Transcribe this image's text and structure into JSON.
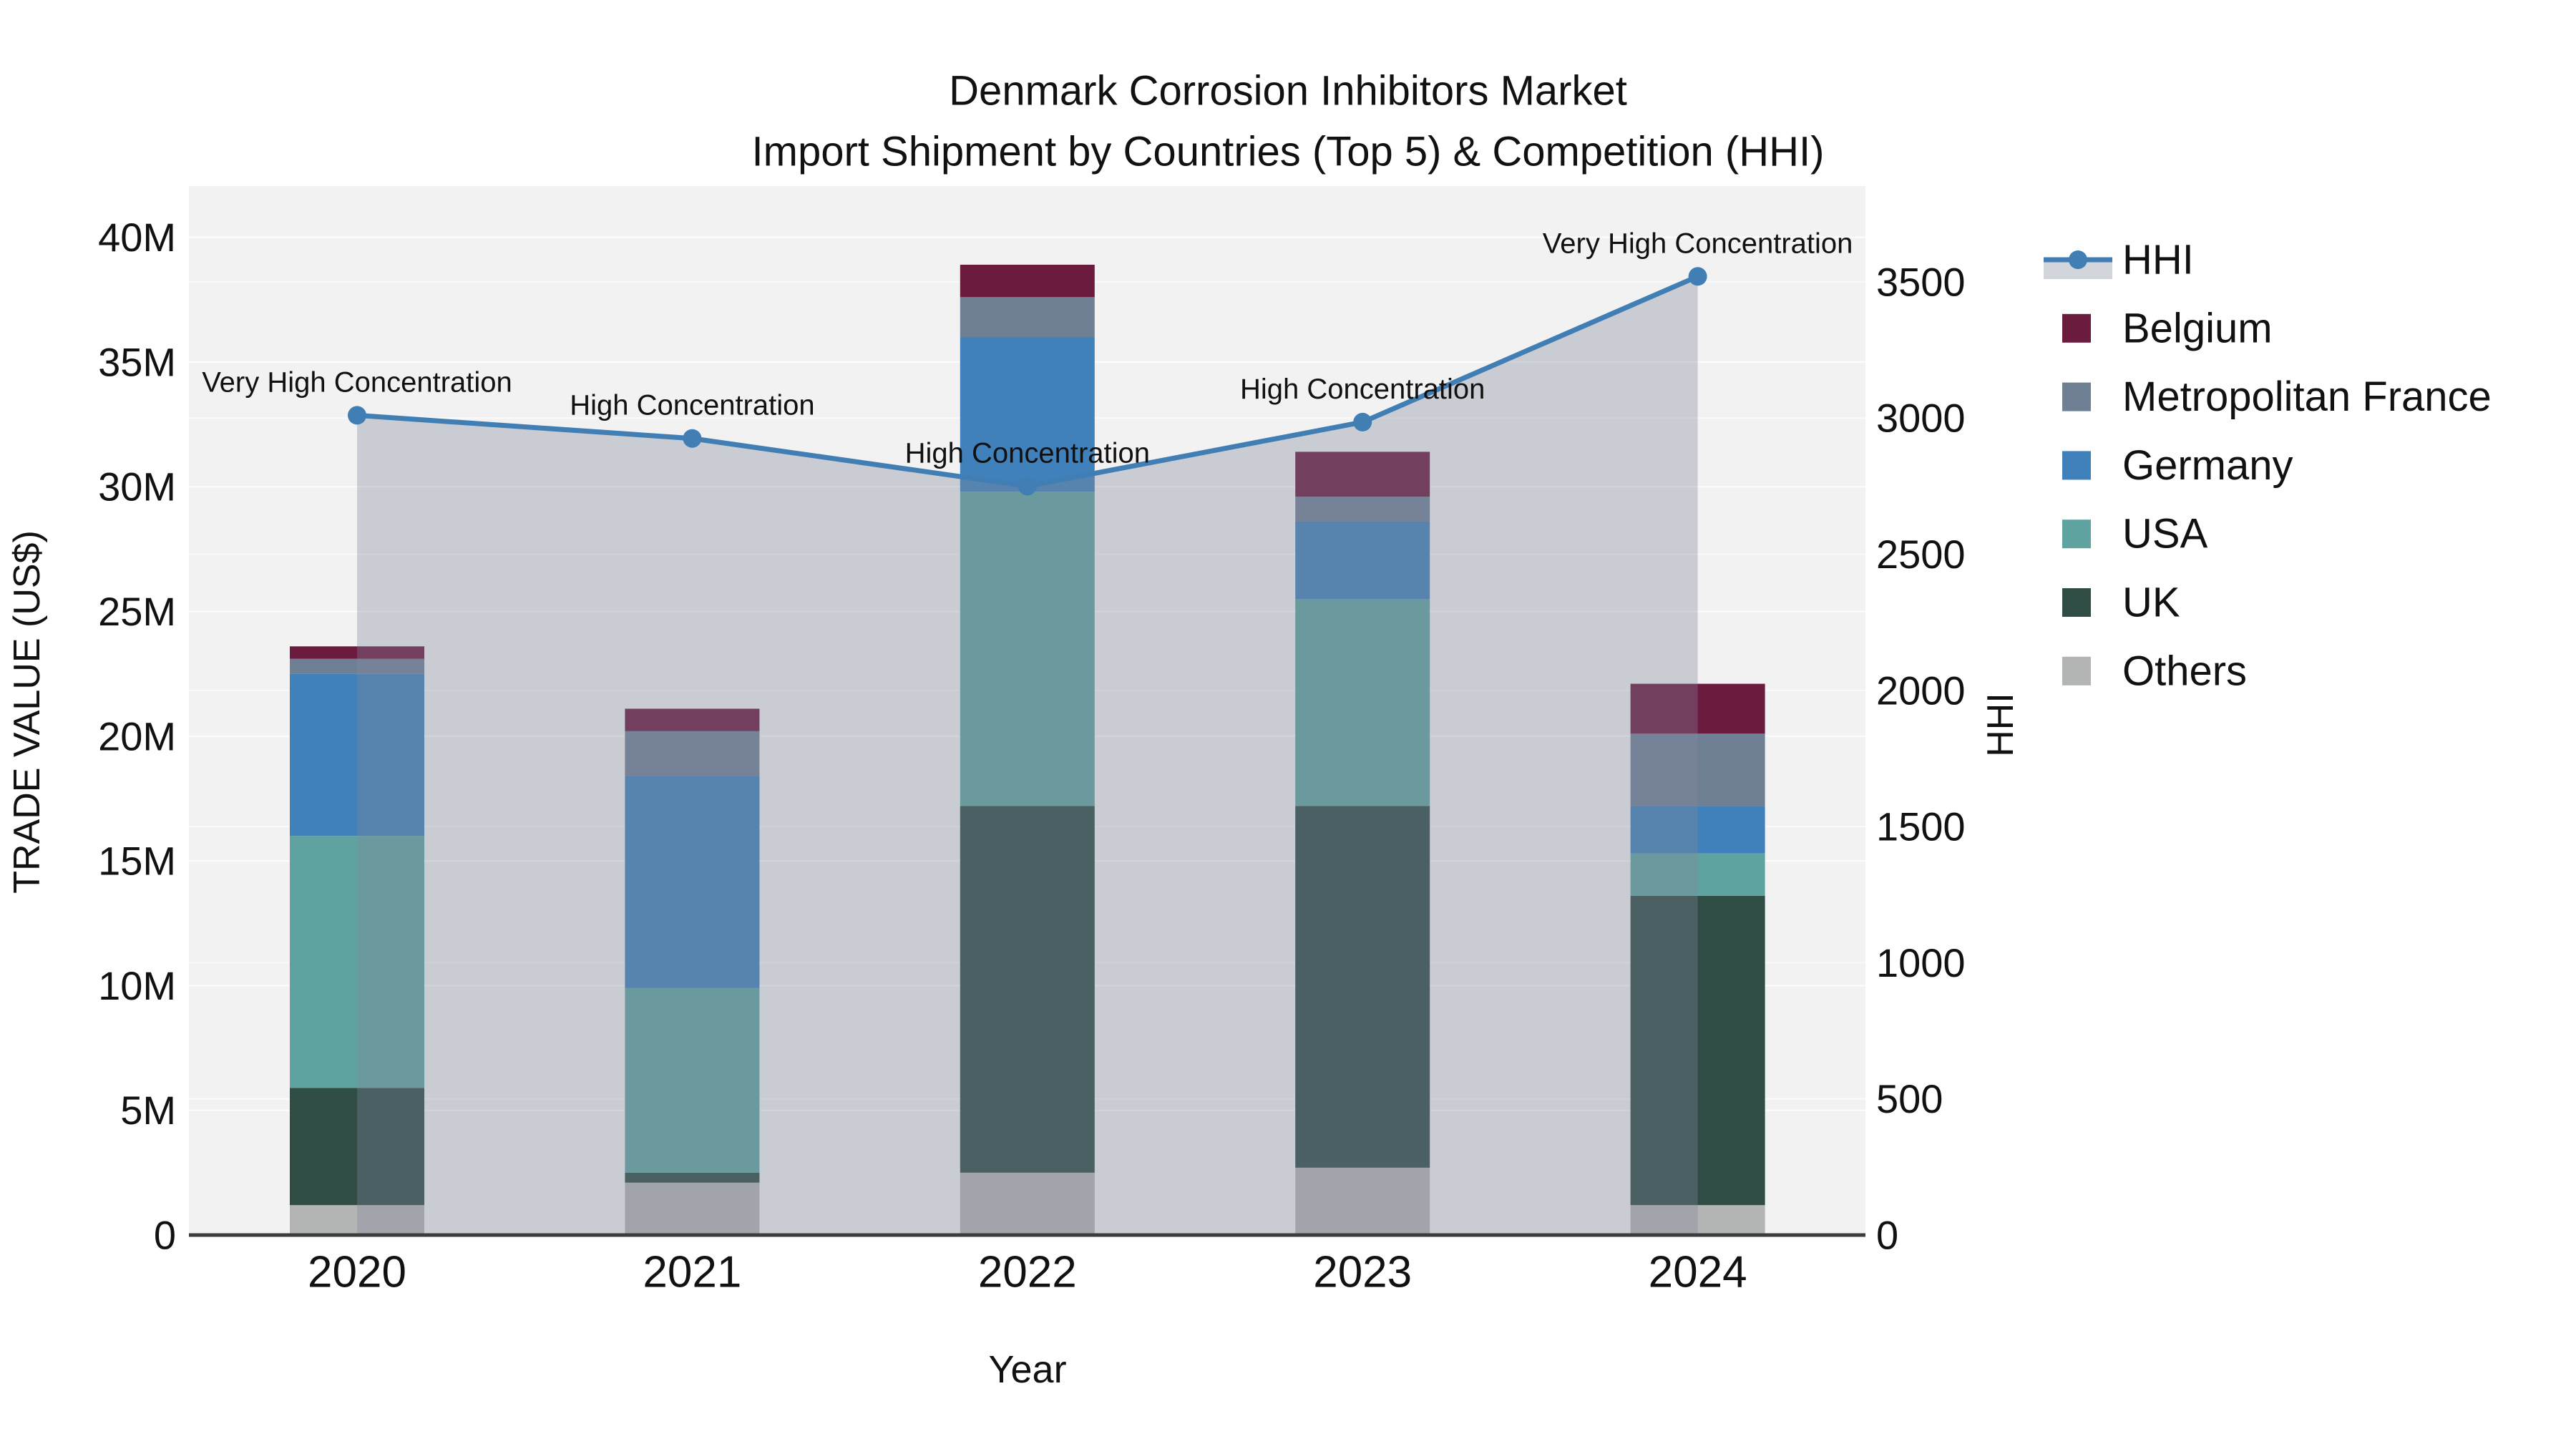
{
  "figure": {
    "title_line1": "Denmark Corrosion Inhibitors Market",
    "title_line2": "Import Shipment by Countries (Top 5) & Competition (HHI)"
  },
  "chart_data": {
    "type": "bar",
    "subtype": "stacked-bars-with-line-area-overlay",
    "title": "Denmark Corrosion Inhibitors Market Import Shipment by Countries (Top 5) & Competition (HHI)",
    "categories": [
      "2020",
      "2021",
      "2022",
      "2023",
      "2024"
    ],
    "xlabel": "Year",
    "y_left": {
      "label": "TRADE VALUE (US$)",
      "unit": "USD millions",
      "tick_labels": [
        "0",
        "5M",
        "10M",
        "15M",
        "20M",
        "25M",
        "30M",
        "35M",
        "40M"
      ],
      "tick_step_millions": 5,
      "ylim": [
        0,
        42
      ]
    },
    "y_right": {
      "label": "HHI",
      "tick_labels": [
        "0",
        "500",
        "1000",
        "1500",
        "2000",
        "2500",
        "3000",
        "3500"
      ],
      "tick_step": 500,
      "ylim": [
        0,
        3852
      ]
    },
    "grid": "on",
    "legend_position": "right",
    "series": [
      {
        "name": "Others",
        "color": "#B3B4B4",
        "values": [
          1.2,
          2.1,
          2.5,
          2.7,
          1.2
        ]
      },
      {
        "name": "UK",
        "color": "#2F4C45",
        "values": [
          4.7,
          0.4,
          14.7,
          14.5,
          12.4
        ]
      },
      {
        "name": "USA",
        "color": "#5FA3A0",
        "values": [
          10.1,
          7.4,
          12.6,
          8.3,
          1.7
        ]
      },
      {
        "name": "Germany",
        "color": "#4181BB",
        "values": [
          6.5,
          8.5,
          6.2,
          3.1,
          1.9
        ]
      },
      {
        "name": "Metropolitan France",
        "color": "#6F8095",
        "values": [
          0.6,
          1.8,
          1.6,
          1.0,
          2.9
        ]
      },
      {
        "name": "Belgium",
        "color": "#6B1B3E",
        "values": [
          0.5,
          0.9,
          1.3,
          1.8,
          2.0
        ]
      }
    ],
    "bar_totals_millions": [
      23.6,
      21.1,
      38.9,
      31.4,
      22.1
    ],
    "line_series": {
      "name": "HHI",
      "color": "#407EB4",
      "area_fill_color": "rgba(128,134,156,0.35)",
      "values": [
        3010,
        2925,
        2750,
        2985,
        3520
      ]
    },
    "annotations": [
      {
        "category": "2020",
        "text": "Very High Concentration"
      },
      {
        "category": "2021",
        "text": "High Concentration"
      },
      {
        "category": "2022",
        "text": "High Concentration"
      },
      {
        "category": "2023",
        "text": "High Concentration"
      },
      {
        "category": "2024",
        "text": "Very High Concentration"
      }
    ],
    "legend_order": [
      "HHI",
      "Belgium",
      "Metropolitan France",
      "Germany",
      "USA",
      "UK",
      "Others"
    ],
    "colors": {
      "plot_background": "#F2F2F3",
      "gridline": "#FFFFFF",
      "axis_line": "#3C3C3C",
      "text": "#111111"
    }
  }
}
